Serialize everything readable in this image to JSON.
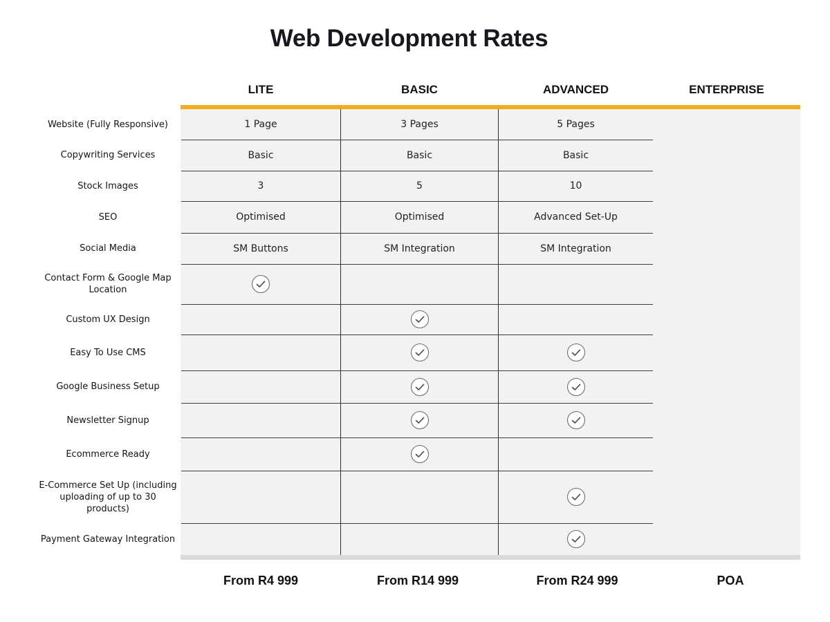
{
  "title": "Web Development Rates",
  "plans": [
    {
      "name": "LITE",
      "price": "From R4 999"
    },
    {
      "name": "BASIC",
      "price": "From R14 999"
    },
    {
      "name": "ADVANCED",
      "price": "From R24 999"
    },
    {
      "name": "ENTERPRISE",
      "price": "POA"
    }
  ],
  "colors": {
    "accent": "#f5ac19",
    "table_background": "#f1f2f1",
    "divider": "#3c3c3c"
  },
  "icons": {
    "check": "check-circle-icon"
  },
  "rows": [
    {
      "feature": "Website (Fully Responsive)",
      "values": [
        "1 Page",
        "3 Pages",
        "5 Pages"
      ]
    },
    {
      "feature": "Copywriting Services",
      "values": [
        "Basic",
        "Basic",
        "Basic"
      ]
    },
    {
      "feature": "Stock Images",
      "values": [
        "3",
        "5",
        "10"
      ]
    },
    {
      "feature": "SEO",
      "values": [
        "Optimised",
        "Optimised",
        "Advanced Set-Up"
      ]
    },
    {
      "feature": "Social Media",
      "values": [
        "SM Buttons",
        "SM Integration",
        "SM Integration"
      ]
    },
    {
      "feature": "Contact Form & Google Map Location",
      "values": [
        true,
        false,
        false
      ]
    },
    {
      "feature": "Custom UX Design",
      "values": [
        false,
        true,
        false
      ]
    },
    {
      "feature": "Easy To Use CMS",
      "values": [
        false,
        true,
        true
      ]
    },
    {
      "feature": "Google Business Setup",
      "values": [
        false,
        true,
        true
      ]
    },
    {
      "feature": "Newsletter Signup",
      "values": [
        false,
        true,
        true
      ]
    },
    {
      "feature": "Ecommerce Ready",
      "values": [
        false,
        true,
        false
      ]
    },
    {
      "feature": "E-Commerce Set Up (including uploading of up to 30 products)",
      "values": [
        false,
        false,
        true
      ]
    },
    {
      "feature": "Payment Gateway Integration",
      "values": [
        false,
        false,
        true
      ]
    }
  ]
}
